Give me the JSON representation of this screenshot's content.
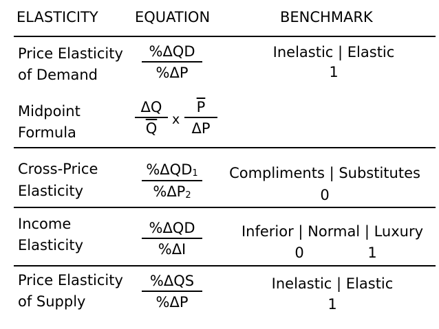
{
  "headers": {
    "elasticity": "ELASTICITY",
    "equation": "EQUATION",
    "benchmark": "BENCHMARK"
  },
  "rows": {
    "ped": {
      "label1": "Price Elasticity",
      "label2": "of Demand",
      "num": "%ΔQD",
      "den": "%ΔP",
      "bench1": "Inelastic | Elastic",
      "bench2": "1"
    },
    "mid": {
      "label1": "Midpoint",
      "label2": "Formula",
      "num1": "ΔQ",
      "den1": "Q",
      "times": "x",
      "num2": "P",
      "den2": "ΔP"
    },
    "cross": {
      "label1": "Cross-Price",
      "label2": "Elasticity",
      "num": "%ΔQD",
      "num_sub": "1",
      "den": "%ΔP",
      "den_sub": "2",
      "bench1": "Compliments | Substitutes",
      "bench2": "0"
    },
    "income": {
      "label1": "Income",
      "label2": "Elasticity",
      "num": "%ΔQD",
      "den": "%ΔI",
      "bench1": "Inferior | Normal | Luxury",
      "bench2a": "0",
      "bench2b": "1"
    },
    "pes": {
      "label1": "Price Elasticity",
      "label2": "of Supply",
      "num": "%ΔQS",
      "den": "%ΔP",
      "bench1": "Inelastic | Elastic",
      "bench2": "1"
    }
  }
}
